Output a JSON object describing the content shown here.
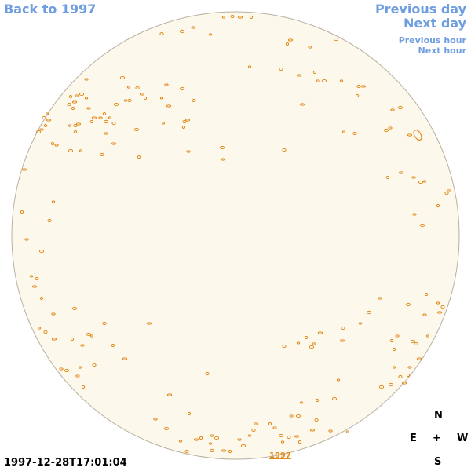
{
  "navigation": {
    "back_label": "Back to 1997",
    "previous_day_label": "Previous day",
    "next_day_label": "Next day",
    "previous_hour_label": "Previous hour",
    "next_hour_label": "Next hour"
  },
  "footer": {
    "timestamp": "1997-12-28T17:01:04",
    "year_link": "1997"
  },
  "compass": {
    "north": "N",
    "east": "E",
    "center": "+",
    "west": "W",
    "south": "S"
  },
  "colors": {
    "link": "#6f9ee0",
    "disk_fill": "#fdf8ec",
    "disk_edge": "#b8b0a0",
    "contour": "#e08a1a"
  }
}
